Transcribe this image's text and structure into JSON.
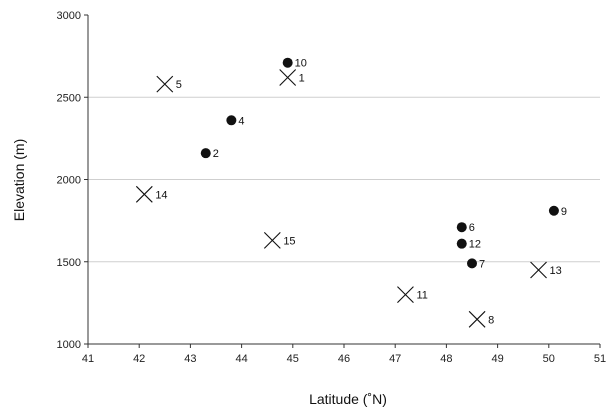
{
  "chart_data": {
    "type": "scatter",
    "xlabel": "Latitude (˚N)",
    "ylabel": "Elevation (m)",
    "xlim": [
      41,
      51
    ],
    "ylim": [
      1000,
      3000
    ],
    "xticks": [
      "41",
      "42",
      "43",
      "44",
      "45",
      "46",
      "47",
      "48",
      "49",
      "50",
      "51"
    ],
    "yticks": [
      "1000",
      "1500",
      "2000",
      "2500",
      "3000"
    ],
    "grid": "horizontal",
    "colors": {
      "marker": "#111111",
      "grid": "#cfcfcf",
      "axis": "#333333"
    },
    "series": [
      {
        "marker": "circle",
        "points": [
          {
            "x": 44.9,
            "y": 2710,
            "label": "10"
          },
          {
            "x": 43.8,
            "y": 2360,
            "label": "4"
          },
          {
            "x": 43.3,
            "y": 2160,
            "label": "2"
          },
          {
            "x": 50.1,
            "y": 1810,
            "label": "9"
          },
          {
            "x": 48.3,
            "y": 1710,
            "label": "6"
          },
          {
            "x": 48.3,
            "y": 1610,
            "label": "12"
          },
          {
            "x": 48.5,
            "y": 1490,
            "label": "7"
          }
        ]
      },
      {
        "marker": "cross",
        "points": [
          {
            "x": 44.9,
            "y": 2620,
            "label": "1"
          },
          {
            "x": 42.5,
            "y": 2580,
            "label": "5"
          },
          {
            "x": 42.1,
            "y": 1910,
            "label": "14"
          },
          {
            "x": 44.6,
            "y": 1630,
            "label": "15"
          },
          {
            "x": 49.8,
            "y": 1450,
            "label": "13"
          },
          {
            "x": 47.2,
            "y": 1300,
            "label": "11"
          },
          {
            "x": 48.6,
            "y": 1150,
            "label": "8"
          }
        ]
      }
    ]
  }
}
